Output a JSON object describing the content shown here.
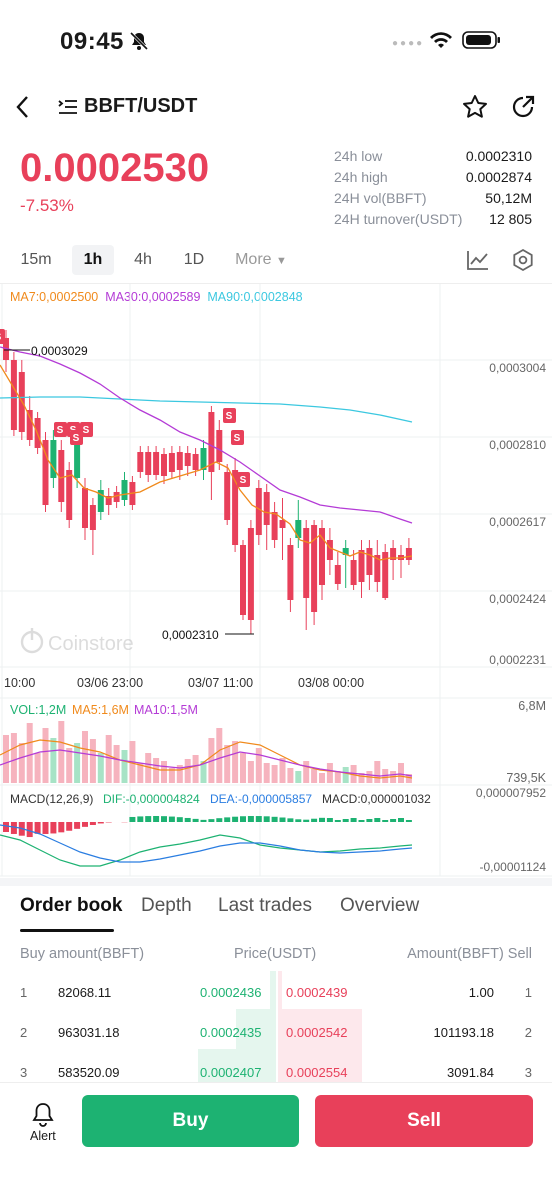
{
  "status_bar": {
    "time": "09:45"
  },
  "header": {
    "pair": "BBFT/USDT"
  },
  "ticker": {
    "price": "0.0002530",
    "change": "-7.53%",
    "stats": [
      {
        "label": "24h low",
        "value": "0.0002310"
      },
      {
        "label": "24h high",
        "value": "0.0002874"
      },
      {
        "label": "24H vol(BBFT)",
        "value": "50,12M"
      },
      {
        "label": "24H turnover(USDT)",
        "value": "12 805"
      }
    ]
  },
  "timeframes": {
    "items": [
      "15m",
      "1h",
      "4h",
      "1D"
    ],
    "active": "1h",
    "more": "More"
  },
  "chart": {
    "ma7": "MA7:0,0002500",
    "ma30": "MA30:0,0002589",
    "ma90": "MA90:0,0002848",
    "y_ticks": [
      "0,0003004",
      "0,0002810",
      "0,0002617",
      "0,0002424",
      "0,0002231"
    ],
    "x_ticks": [
      "10:00",
      "03/06 23:00",
      "03/07 11:00",
      "03/08 00:00"
    ],
    "high_marker": "0,0003029",
    "low_marker": "0,0002310",
    "watermark": "Coinstore",
    "vol": "VOL:1,2M",
    "vol_ma5": "MA5:1,6M",
    "vol_ma10": "MA10:1,5M",
    "vol_max": "6,8M",
    "vol_min": "739,5K",
    "macd_label": "MACD(12,26,9)",
    "dif": "DIF:-0,000004824",
    "dea": "DEA:-0,000005857",
    "macd": "MACD:0,000001032",
    "macd_max": "0,000007952",
    "macd_min": "-0,00001124",
    "colors": {
      "up": "#1db272",
      "down": "#e8405a",
      "ma7": "#f08a1c",
      "ma30": "#b43bd6",
      "ma90": "#3cc8e0"
    }
  },
  "orderbook_tabs": {
    "items": [
      "Order book",
      "Depth",
      "Last trades",
      "Overview"
    ],
    "active": "Order book"
  },
  "orderbook": {
    "headers": {
      "buy": "Buy amount(BBFT)",
      "price": "Price(USDT)",
      "sell": "Amount(BBFT) Sell"
    },
    "rows": [
      {
        "n": "1",
        "buy_amount": "82068.11",
        "bid": "0.0002436",
        "ask": "0.0002439",
        "sell_amount": "1.00",
        "m": "1"
      },
      {
        "n": "2",
        "buy_amount": "963031.18",
        "bid": "0.0002435",
        "ask": "0.0002542",
        "sell_amount": "101193.18",
        "m": "2"
      },
      {
        "n": "3",
        "buy_amount": "583520.09",
        "bid": "0.0002407",
        "ask": "0.0002554",
        "sell_amount": "3091.84",
        "m": "3"
      }
    ]
  },
  "bottom": {
    "alert": "Alert",
    "buy": "Buy",
    "sell": "Sell"
  }
}
